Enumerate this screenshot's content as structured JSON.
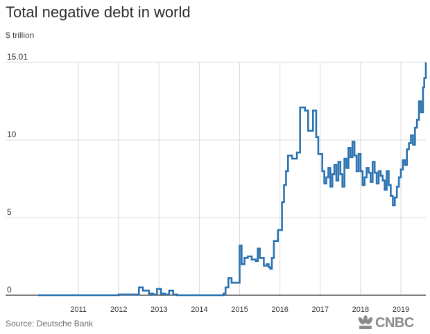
{
  "header": {
    "title": "Total negative debt in world",
    "unit": "$ trillion"
  },
  "footer": {
    "source": "Source: Deutsche Bank",
    "logo_text": "CNBC"
  },
  "colors": {
    "line": "#2a72b0",
    "grid": "#d9d9d9",
    "axis": "#333333",
    "text": "#333333"
  },
  "chart_data": {
    "type": "line",
    "title": "Total negative debt in world",
    "ylabel": "$ trillion",
    "xlim": [
      2010.0,
      2019.62
    ],
    "ylim": [
      0,
      15.01
    ],
    "yticks": [
      0,
      5,
      10,
      15.01
    ],
    "ytick_labels": [
      "0",
      "5",
      "10",
      "15.01"
    ],
    "xticks": [
      2011,
      2012,
      2013,
      2014,
      2015,
      2016,
      2017,
      2018,
      2019
    ],
    "xtick_labels": [
      "2011",
      "2012",
      "2013",
      "2014",
      "2015",
      "2016",
      "2017",
      "2018",
      "2019"
    ],
    "grid": "vertical",
    "step": true,
    "series": [
      {
        "x": [
          2010.0,
          2012.0,
          2012.5,
          2012.6,
          2012.75,
          2012.85,
          2012.95,
          2013.05,
          2013.15,
          2013.25,
          2013.35,
          2013.45,
          2014.0,
          2014.6,
          2014.65,
          2014.72,
          2014.8,
          2015.0,
          2015.05,
          2015.12,
          2015.2,
          2015.3,
          2015.4,
          2015.45,
          2015.5,
          2015.6,
          2015.67,
          2015.72,
          2015.76,
          2015.8,
          2015.85,
          2015.95,
          2016.05,
          2016.1,
          2016.15,
          2016.2,
          2016.3,
          2016.42,
          2016.5,
          2016.62,
          2016.7,
          2016.82,
          2016.9,
          2016.95,
          2017.05,
          2017.1,
          2017.15,
          2017.2,
          2017.25,
          2017.3,
          2017.35,
          2017.4,
          2017.45,
          2017.5,
          2017.55,
          2017.6,
          2017.65,
          2017.7,
          2017.75,
          2017.8,
          2017.85,
          2017.9,
          2017.95,
          2018.0,
          2018.05,
          2018.1,
          2018.15,
          2018.2,
          2018.25,
          2018.3,
          2018.35,
          2018.4,
          2018.45,
          2018.5,
          2018.55,
          2018.6,
          2018.65,
          2018.7,
          2018.75,
          2018.8,
          2018.85,
          2018.9,
          2018.95,
          2019.0,
          2019.05,
          2019.1,
          2019.15,
          2019.2,
          2019.25,
          2019.3,
          2019.35,
          2019.4,
          2019.45,
          2019.5,
          2019.55,
          2019.58,
          2019.62
        ],
        "values": [
          0.0,
          0.05,
          0.5,
          0.3,
          0.1,
          0.05,
          0.4,
          0.1,
          0.05,
          0.3,
          0.05,
          0.0,
          0.0,
          0.1,
          0.5,
          1.1,
          0.8,
          3.2,
          2.0,
          2.4,
          2.5,
          2.3,
          2.2,
          3.0,
          2.4,
          1.9,
          2.0,
          1.8,
          1.7,
          2.4,
          3.5,
          4.2,
          6.0,
          7.1,
          8.0,
          9.0,
          8.8,
          9.2,
          12.1,
          11.9,
          10.6,
          11.9,
          10.2,
          9.1,
          8.0,
          7.2,
          7.6,
          8.2,
          7.0,
          7.8,
          8.4,
          7.4,
          8.6,
          7.8,
          7.0,
          8.8,
          8.2,
          9.5,
          8.9,
          9.9,
          9.0,
          8.0,
          9.1,
          8.0,
          7.1,
          7.6,
          8.2,
          7.9,
          7.3,
          8.6,
          7.9,
          7.2,
          8.0,
          7.7,
          7.4,
          6.8,
          8.0,
          7.1,
          6.4,
          5.8,
          6.3,
          7.0,
          7.6,
          8.1,
          8.7,
          8.4,
          9.4,
          9.8,
          10.3,
          9.7,
          10.8,
          11.3,
          12.5,
          11.8,
          13.4,
          14.0,
          15.01
        ]
      }
    ]
  }
}
